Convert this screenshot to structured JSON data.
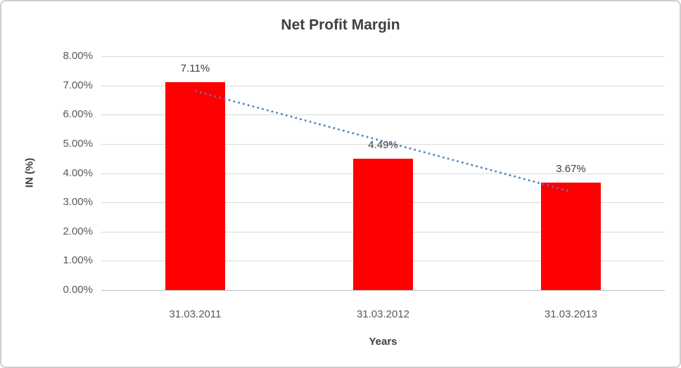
{
  "chart_data": {
    "type": "bar",
    "title": "Net Profit Margin",
    "xlabel": "Years",
    "ylabel": "IN (%)",
    "categories": [
      "31.03.2011",
      "31.03.2012",
      "31.03.2013"
    ],
    "values": [
      7.11,
      4.49,
      3.67
    ],
    "data_labels": [
      "7.11%",
      "4.49%",
      "3.67%"
    ],
    "y_ticks": [
      "8.00%",
      "7.00%",
      "6.00%",
      "5.00%",
      "4.00%",
      "3.00%",
      "2.00%",
      "1.00%",
      "0.00%"
    ],
    "ylim": [
      0,
      8
    ],
    "y_tick_step": 1,
    "grid": true,
    "legend": "none",
    "bar_color": "#ff0000",
    "trendline": {
      "type": "linear",
      "style": "dotted",
      "color": "#4a7ebb",
      "points": [
        {
          "category_index": 0,
          "value": 6.81
        },
        {
          "category_index": 2,
          "value": 3.37
        }
      ]
    }
  }
}
